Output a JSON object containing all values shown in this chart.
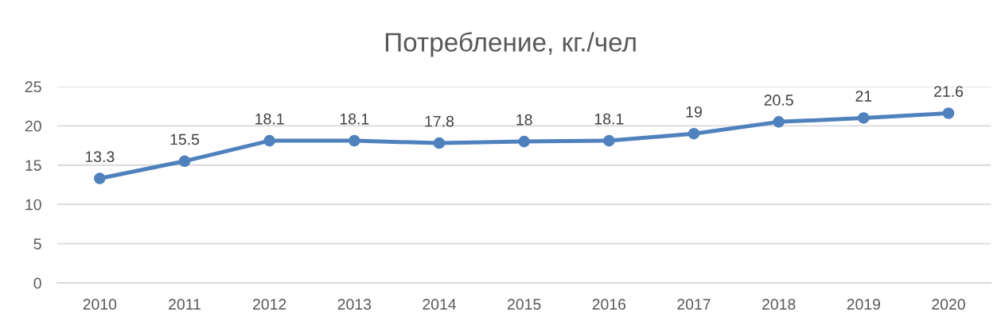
{
  "chart_data": {
    "type": "line",
    "title": "Потребление, кг./чел",
    "categories": [
      "2010",
      "2011",
      "2012",
      "2013",
      "2014",
      "2015",
      "2016",
      "2017",
      "2018",
      "2019",
      "2020"
    ],
    "series": [
      {
        "color": "#4f81bd",
        "values": [
          13.3,
          15.5,
          18.1,
          18.1,
          17.8,
          18,
          18.1,
          19,
          20.5,
          21,
          21.6
        ]
      }
    ],
    "ylim": [
      0,
      25
    ],
    "yticks": [
      0,
      5,
      10,
      15,
      20,
      25
    ],
    "grid": "y",
    "marker": "circle",
    "line_style": "solid",
    "data_labels": true
  }
}
